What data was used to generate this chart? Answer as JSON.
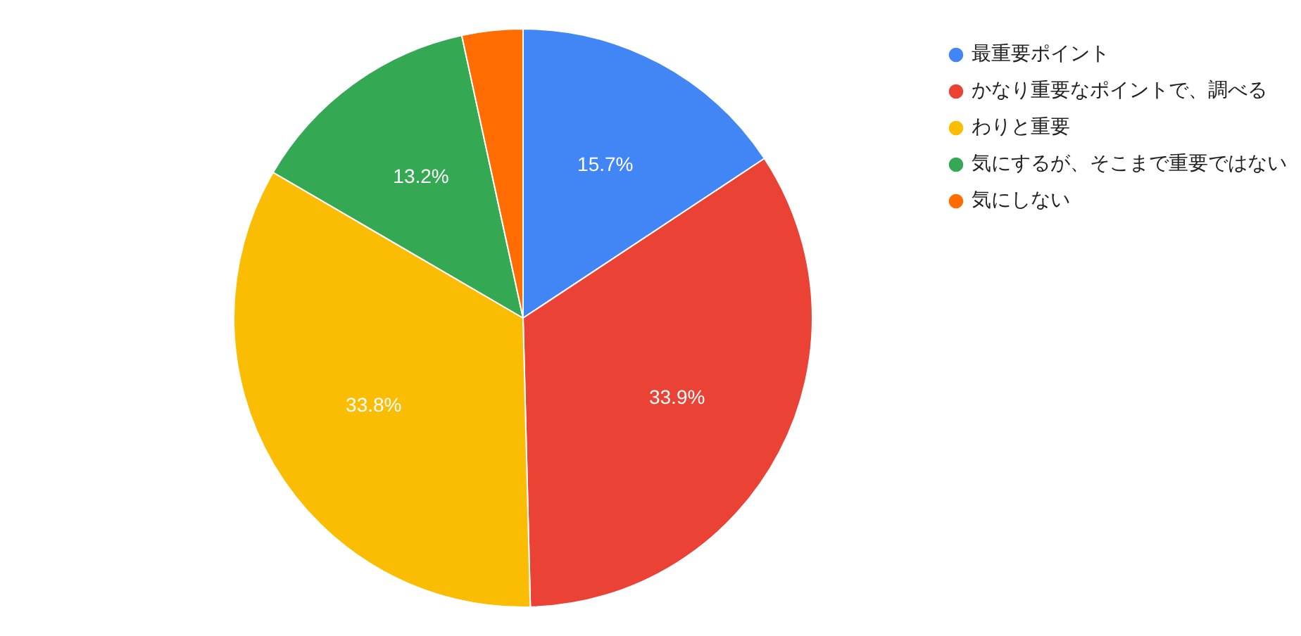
{
  "chart_data": {
    "type": "pie",
    "categories": [
      "最重要ポイント",
      "かなり重要なポイントで、調べる",
      "わりと重要",
      "気にするが、そこまで重要ではない",
      "気にしない"
    ],
    "values": [
      15.7,
      33.9,
      33.8,
      13.2,
      3.4
    ],
    "colors": [
      "#4285f4",
      "#ea4335",
      "#fbbc04",
      "#34a853",
      "#ff6d01"
    ],
    "value_labels": [
      "15.7%",
      "33.9%",
      "33.8%",
      "13.2%",
      null
    ],
    "legend": "top right"
  }
}
